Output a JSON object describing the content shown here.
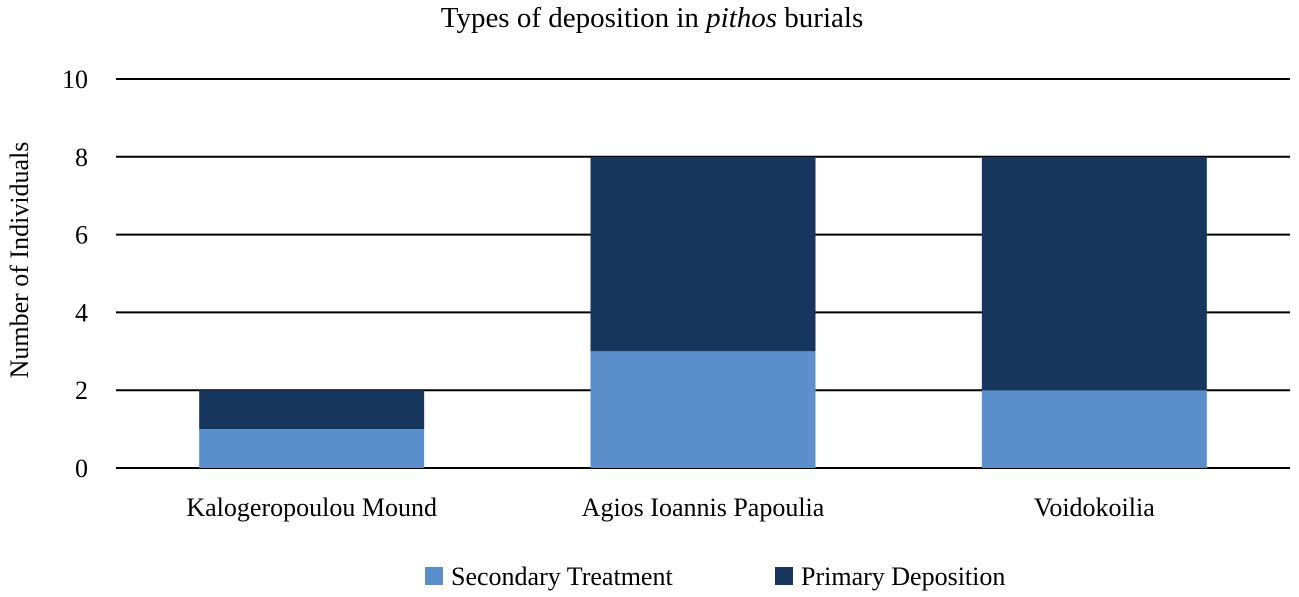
{
  "chart_data": {
    "type": "bar",
    "stacked": true,
    "title_prefix": "Types of deposition in ",
    "title_emphasis": "pithos",
    "title_suffix": " burials",
    "xlabel": "",
    "ylabel": "Number of Individuals",
    "categories": [
      "Kalogeropoulou Mound",
      "Agios Ioannis Papoulia",
      "Voidokoilia"
    ],
    "series": [
      {
        "name": "Secondary Treatment",
        "values": [
          1,
          3,
          2
        ],
        "color": "#5b8fcb"
      },
      {
        "name": "Primary Deposition",
        "values": [
          1,
          5,
          6
        ],
        "color": "#17365d"
      }
    ],
    "ylim": [
      0,
      10
    ],
    "yticks": [
      "0",
      "2",
      "4",
      "6",
      "8",
      "10"
    ],
    "grid": true,
    "legend_position": "bottom"
  }
}
